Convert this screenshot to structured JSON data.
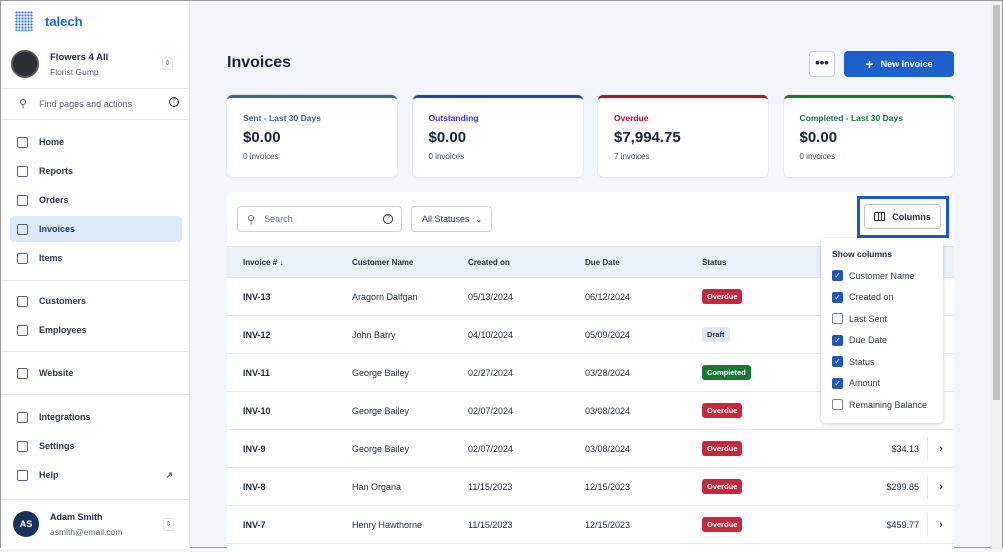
{
  "app": {
    "logo": "talech"
  },
  "org": {
    "name": "Flowers 4 All",
    "sub": "Florist Gump"
  },
  "find": {
    "placeholder": "Find pages and actions"
  },
  "nav": [
    {
      "label": "Home",
      "icon": "home-icon"
    },
    {
      "label": "Reports",
      "icon": "chart-icon"
    },
    {
      "label": "Orders",
      "icon": "orders-icon"
    },
    {
      "label": "Invoices",
      "icon": "invoice-icon",
      "active": true
    },
    {
      "label": "Items",
      "icon": "box-icon"
    },
    {
      "label": "Customers",
      "icon": "customers-icon"
    },
    {
      "label": "Employees",
      "icon": "employees-icon"
    },
    {
      "label": "Website",
      "icon": "monitor-icon"
    },
    {
      "label": "Integrations",
      "icon": "integrations-icon"
    },
    {
      "label": "Settings",
      "icon": "gear-icon"
    },
    {
      "label": "Help",
      "icon": "help-icon"
    }
  ],
  "user": {
    "initials": "AS",
    "name": "Adam Smith",
    "email": "asmith@email.com"
  },
  "page": {
    "title": "Invoices",
    "more": "•••",
    "new_invoice": "New Invoice"
  },
  "cards": [
    {
      "label": "Sent - Last 30 Days",
      "value": "$0.00",
      "count": "0 invoices",
      "color": "#3f6394"
    },
    {
      "label": "Outstanding",
      "value": "$0.00",
      "count": "0 invoices",
      "color": "#2f39c9"
    },
    {
      "label": "Overdue",
      "value": "$7,994.75",
      "count": "7 invoices",
      "color": "#b3102a"
    },
    {
      "label": "Completed - Last 30 Days",
      "value": "$0.00",
      "count": "0 invoices",
      "color": "#0f7a36"
    }
  ],
  "toolbar": {
    "search_placeholder": "Search",
    "status_filter": "All Statuses",
    "columns": "Columns"
  },
  "table": {
    "headers": [
      "Invoice # ↓",
      "Customer Name",
      "Created on",
      "Due Date",
      "Status"
    ],
    "rows": [
      {
        "id": "INV-13",
        "customer": "Aragorn Dalfgan",
        "created": "05/13/2024",
        "due": "06/12/2024",
        "status": "Overdue",
        "amount": ""
      },
      {
        "id": "INV-12",
        "customer": "John Barry",
        "created": "04/10/2024",
        "due": "05/09/2024",
        "status": "Draft",
        "amount": ""
      },
      {
        "id": "INV-11",
        "customer": "George Bailey",
        "created": "02/27/2024",
        "due": "03/28/2024",
        "status": "Completed",
        "amount": ""
      },
      {
        "id": "INV-10",
        "customer": "George Bailey",
        "created": "02/07/2024",
        "due": "03/08/2024",
        "status": "Overdue",
        "amount": ""
      },
      {
        "id": "INV-9",
        "customer": "George Bailey",
        "created": "02/07/2024",
        "due": "03/08/2024",
        "status": "Overdue",
        "amount": "$34.13"
      },
      {
        "id": "INV-8",
        "customer": "Han Organa",
        "created": "11/15/2023",
        "due": "12/15/2023",
        "status": "Overdue",
        "amount": "$299.85"
      },
      {
        "id": "INV-7",
        "customer": "Henry Hawthorne",
        "created": "11/15/2023",
        "due": "12/15/2023",
        "status": "Overdue",
        "amount": "$459.77"
      }
    ]
  },
  "status_colors": {
    "Overdue": "#c8283f",
    "Draft": "#dde8f3",
    "Completed": "#137a35"
  },
  "columns_menu": {
    "title": "Show columns",
    "options": [
      {
        "label": "Customer Name",
        "checked": true
      },
      {
        "label": "Created on",
        "checked": true
      },
      {
        "label": "Last Sent",
        "checked": false
      },
      {
        "label": "Due Date",
        "checked": true
      },
      {
        "label": "Status",
        "checked": true
      },
      {
        "label": "Amount",
        "checked": true
      },
      {
        "label": "Remaining Balance",
        "checked": false
      }
    ]
  }
}
